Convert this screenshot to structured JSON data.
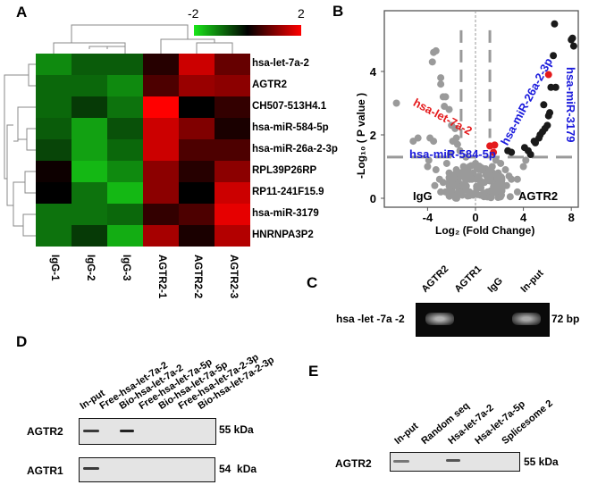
{
  "panels": {
    "a": "A",
    "b": "B",
    "c": "C",
    "d": "D",
    "e": "E"
  },
  "chart_data": [
    {
      "type": "heatmap",
      "panel": "A",
      "colorbar": {
        "min_label": "-2",
        "max_label": "2",
        "min": -2,
        "max": 2,
        "colors": [
          "#19e619",
          "#000000",
          "#ff0000"
        ]
      },
      "columns": [
        "IgG-1",
        "IgG-2",
        "IgG-3",
        "AGTR2-1",
        "AGTR2-2",
        "AGTR2-3"
      ],
      "rows": [
        "hsa-let-7a-2",
        "AGTR2",
        "CH507-513H4.1",
        "hsa-miR-584-5p",
        "hsa-miR-26a-2-3p",
        "RPL39P26RP",
        "RP11-241F15.9",
        "hsa-miR-3179",
        "HNRNPA3P2"
      ],
      "values": [
        [
          -1.2,
          -0.8,
          -0.8,
          0.3,
          1.6,
          0.8
        ],
        [
          -0.9,
          -0.9,
          -1.2,
          0.6,
          1.2,
          1.1
        ],
        [
          -0.9,
          -0.5,
          -1.0,
          2.0,
          0.0,
          0.4
        ],
        [
          -0.8,
          -1.4,
          -0.7,
          1.6,
          1.0,
          0.2
        ],
        [
          -0.6,
          -1.4,
          -0.9,
          1.6,
          0.6,
          0.6
        ],
        [
          0.1,
          -1.6,
          -1.2,
          1.1,
          0.3,
          1.1
        ],
        [
          0.0,
          -1.0,
          -1.6,
          1.1,
          0.0,
          1.6
        ],
        [
          -1.0,
          -1.0,
          -0.9,
          0.4,
          0.6,
          1.8
        ],
        [
          -1.0,
          -0.5,
          -1.5,
          1.3,
          0.2,
          1.4
        ]
      ],
      "dendrograms": true
    },
    {
      "type": "scatter",
      "panel": "B",
      "xlabel": "Log₂ (Fold Change)",
      "ylabel": "-Log₁₀ ( P value )",
      "xlim": [
        -7,
        8.5
      ],
      "ylim": [
        -0.3,
        5.8
      ],
      "xticks": [
        -4,
        0,
        4,
        8
      ],
      "yticks": [
        0,
        2,
        4
      ],
      "thresholds": {
        "fold_change": [
          -1.2,
          1.2
        ],
        "p_value": 1.3
      },
      "region_labels": {
        "left": "IgG",
        "right": "AGTR2"
      },
      "colors": {
        "ns": "#9a9a9a",
        "sig": "#1a1a1a",
        "highlight": "#e41a1c",
        "label_blue": "#1a1adc",
        "label_red": "#e41a1c"
      },
      "series": [
        {
          "kind": "not-significant",
          "points": [
            [
              -6.6,
              3.0
            ],
            [
              -3.5,
              4.6
            ],
            [
              -3.3,
              4.65
            ],
            [
              -3.6,
              4.3
            ],
            [
              -2.9,
              3.8
            ],
            [
              -2.9,
              3.6
            ],
            [
              -2.7,
              3.2
            ],
            [
              -2.5,
              3.2
            ],
            [
              -2.6,
              2.9
            ],
            [
              -2.2,
              2.8
            ],
            [
              -4.8,
              1.9
            ],
            [
              -5.2,
              1.8
            ],
            [
              -3.8,
              1.9
            ],
            [
              -3.5,
              1.8
            ],
            [
              -3.9,
              1.2
            ],
            [
              -4.0,
              1.0
            ],
            [
              -3.3,
              0.9
            ],
            [
              -3.0,
              0.6
            ],
            [
              -2.9,
              0.2
            ],
            [
              -2.0,
              2.3
            ],
            [
              -1.7,
              2.2
            ],
            [
              -1.6,
              1.9
            ],
            [
              -1.5,
              1.7
            ],
            [
              -1.9,
              1.8
            ],
            [
              -1.3,
              1.5
            ],
            [
              -0.8,
              1.3
            ],
            [
              2.5,
              0.9
            ],
            [
              2.8,
              0.7
            ],
            [
              3.0,
              0.6
            ],
            [
              3.5,
              0.6
            ],
            [
              2.6,
              0.4
            ],
            [
              3.5,
              0.2
            ],
            [
              4.2,
              1.2
            ],
            [
              4.0,
              1.0
            ],
            [
              2.2,
              0.3
            ],
            [
              1.8,
              0.5
            ],
            [
              -2.4,
              1.1
            ],
            [
              -2.2,
              0.8
            ],
            [
              -1.9,
              0.5
            ],
            [
              -1.6,
              0.9
            ],
            [
              -1.4,
              0.3
            ],
            [
              -1.2,
              0.7
            ],
            [
              -1.0,
              1.0
            ],
            [
              -0.8,
              0.4
            ],
            [
              -0.6,
              0.8
            ],
            [
              -0.5,
              0.2
            ],
            [
              -0.3,
              0.6
            ],
            [
              -0.2,
              0.1
            ],
            [
              0.1,
              0.3
            ],
            [
              0.3,
              0.7
            ],
            [
              0.4,
              0.1
            ],
            [
              0.6,
              0.5
            ],
            [
              0.8,
              0.9
            ],
            [
              1.0,
              0.2
            ],
            [
              1.2,
              0.6
            ],
            [
              1.4,
              1.0
            ],
            [
              1.6,
              0.3
            ],
            [
              1.9,
              0.8
            ],
            [
              2.1,
              1.1
            ],
            [
              -2.7,
              0.5
            ],
            [
              -2.5,
              0.2
            ],
            [
              -1.8,
              0.1
            ],
            [
              -1.1,
              0.1
            ],
            [
              0.7,
              0.05
            ],
            [
              1.3,
              0.1
            ],
            [
              2.0,
              0.05
            ],
            [
              2.9,
              0.05
            ],
            [
              -3.4,
              0.4
            ],
            [
              -2.1,
              1.4
            ],
            [
              1.7,
              1.2
            ]
          ]
        },
        {
          "kind": "significant",
          "points": [
            [
              6.6,
              5.5
            ],
            [
              8.0,
              5.0
            ],
            [
              8.1,
              5.05
            ],
            [
              8.2,
              4.8
            ],
            [
              6.5,
              4.5
            ],
            [
              6.3,
              3.5
            ],
            [
              6.7,
              3.5
            ],
            [
              5.7,
              2.95
            ],
            [
              6.2,
              2.7
            ],
            [
              6.1,
              2.6
            ],
            [
              6.0,
              2.3
            ],
            [
              5.8,
              2.2
            ],
            [
              5.6,
              2.1
            ],
            [
              5.4,
              2.0
            ],
            [
              5.3,
              1.9
            ],
            [
              4.9,
              1.8
            ],
            [
              5.0,
              1.75
            ],
            [
              4.1,
              1.6
            ],
            [
              4.4,
              1.5
            ],
            [
              4.6,
              1.38
            ],
            [
              2.7,
              1.5
            ],
            [
              3.0,
              1.45
            ]
          ]
        },
        {
          "kind": "highlighted",
          "points": [
            [
              6.1,
              3.9
            ],
            [
              1.2,
              1.65
            ],
            [
              1.6,
              1.68
            ],
            [
              1.5,
              1.45
            ]
          ]
        }
      ],
      "annotations": [
        {
          "text": "hsa-let-7a-2",
          "color": "red"
        },
        {
          "text": "hsa-miR-584-5p",
          "color": "blue"
        },
        {
          "text": "hsa-miR-26a-2-3p",
          "color": "blue"
        },
        {
          "text": "hsa-miR-3179",
          "color": "blue"
        }
      ]
    }
  ],
  "panel_c": {
    "lanes": [
      "AGTR2",
      "AGTR1",
      "IgG",
      "In-put"
    ],
    "row_label": "hsa -let -7a -2",
    "size": "72 bp"
  },
  "panel_d": {
    "lanes": [
      "In-put",
      "Free-hsa-let-7a-2",
      "Bio-hsa-let-7a-2",
      "Free-hsa-let-7a-5p",
      "Bio-hsa-let-7a-5p",
      "Free-hsa-let-7a-2-3p",
      "Bio-hsa-let-7a-2-3p"
    ],
    "blots": [
      {
        "label": "AGTR2",
        "size": "55 kDa"
      },
      {
        "label": "AGTR1",
        "size": "54  kDa"
      }
    ]
  },
  "panel_e": {
    "lanes": [
      "In-put",
      "Random seq",
      "Hsa-let-7a-2",
      "Hsa-let-7a-5p",
      "Splicesome 2"
    ],
    "blot": {
      "label": "AGTR2",
      "size": "55 kDa"
    }
  }
}
